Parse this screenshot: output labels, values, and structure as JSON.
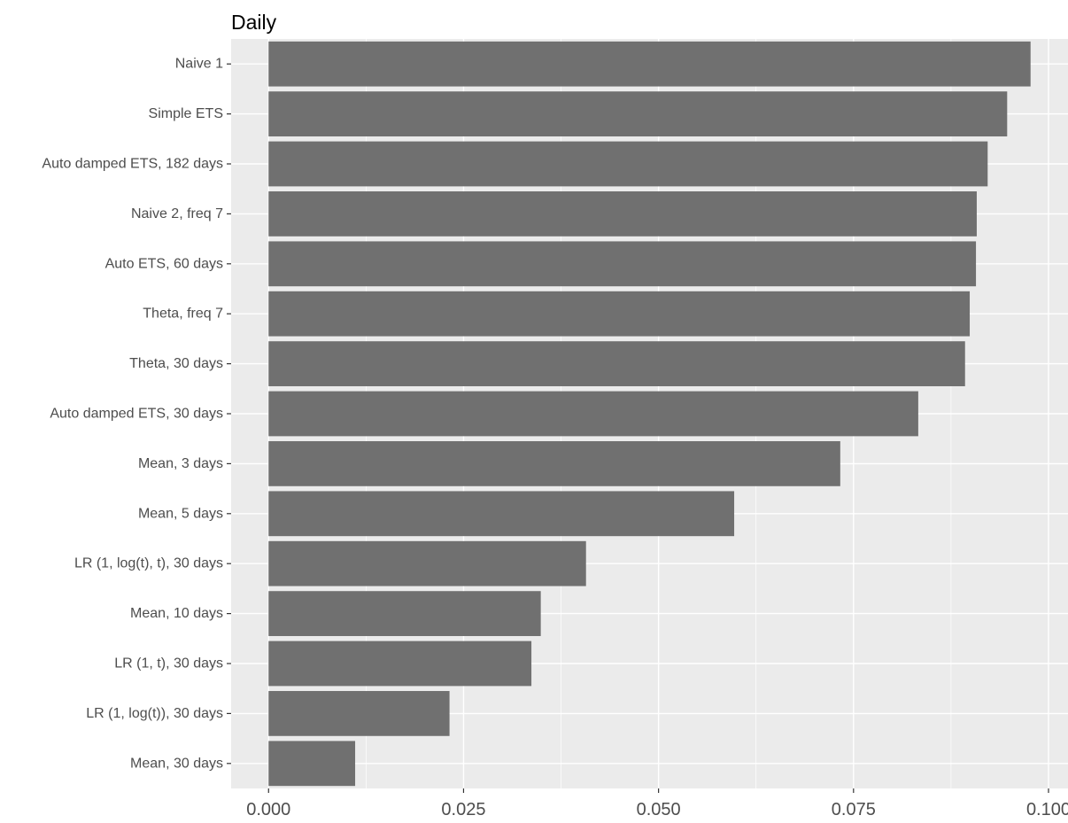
{
  "chart_data": {
    "type": "bar",
    "orientation": "horizontal",
    "title": "Daily",
    "xlabel": "",
    "ylabel": "",
    "categories": [
      "Naive 1",
      "Simple ETS",
      "Auto damped ETS, 182 days",
      "Naive 2, freq 7",
      "Auto ETS, 60 days",
      "Theta, freq 7",
      "Theta, 30 days",
      "Auto damped ETS, 30 days",
      "Mean, 3 days",
      "Mean, 5 days",
      "LR (1, log(t), t), 30 days",
      "Mean, 10 days",
      "LR (1, t), 30 days",
      "LR (1, log(t)), 30 days",
      "Mean, 30 days"
    ],
    "values": [
      0.0977,
      0.0947,
      0.0922,
      0.0908,
      0.0907,
      0.0899,
      0.0893,
      0.0833,
      0.0733,
      0.0597,
      0.0407,
      0.0349,
      0.0337,
      0.0232,
      0.0111
    ],
    "xlim": [
      -0.0048,
      0.1025
    ],
    "xticks": [
      "0.000",
      "0.025",
      "0.050",
      "0.075",
      "0.100"
    ],
    "xtick_values": [
      0,
      0.025,
      0.05,
      0.075,
      0.1
    ],
    "grid": true,
    "legend": "none",
    "colors": {
      "bar": "#707070",
      "panel": "#ebebeb",
      "grid": "#ffffff",
      "tick_text": "#4d4d4d",
      "tick_mark": "#333333"
    }
  }
}
